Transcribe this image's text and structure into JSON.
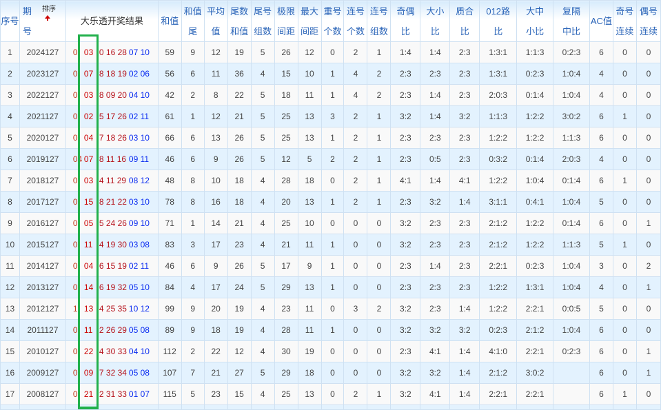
{
  "table": {
    "headers": [
      {
        "lines": [
          "序号"
        ]
      },
      {
        "lines": [
          "期",
          "号"
        ],
        "sort_label": "排序"
      },
      {
        "lines": [
          "大乐透开奖结果"
        ]
      },
      {
        "lines": [
          "和值"
        ]
      },
      {
        "lines": [
          "和值",
          "尾"
        ]
      },
      {
        "lines": [
          "平均",
          "值"
        ]
      },
      {
        "lines": [
          "尾数",
          "和值"
        ]
      },
      {
        "lines": [
          "尾号",
          "组数"
        ]
      },
      {
        "lines": [
          "极限",
          "间距"
        ]
      },
      {
        "lines": [
          "最大",
          "间距"
        ]
      },
      {
        "lines": [
          "重号",
          "个数"
        ]
      },
      {
        "lines": [
          "连号",
          "个数"
        ]
      },
      {
        "lines": [
          "连号",
          "组数"
        ]
      },
      {
        "lines": [
          "奇偶",
          "比"
        ]
      },
      {
        "lines": [
          "大小",
          "比"
        ]
      },
      {
        "lines": [
          "质合",
          "比"
        ]
      },
      {
        "lines": [
          "012路",
          "比"
        ]
      },
      {
        "lines": [
          "大中",
          "小比"
        ]
      },
      {
        "lines": [
          "复隔",
          "中比"
        ]
      },
      {
        "lines": [
          "AC值"
        ]
      },
      {
        "lines": [
          "奇号",
          "连续"
        ]
      },
      {
        "lines": [
          "偶号",
          "连续"
        ]
      }
    ],
    "rows": [
      {
        "no": "1",
        "issue": "2024127",
        "draw": [
          "0",
          "03",
          "0 16 28",
          "07 10"
        ],
        "stats": [
          "59",
          "9",
          "12",
          "19",
          "5",
          "26",
          "12",
          "0",
          "2",
          "1",
          "1:4",
          "1:4",
          "2:3",
          "1:3:1",
          "1:1:3",
          "0:2:3",
          "6",
          "0",
          "0"
        ]
      },
      {
        "no": "2",
        "issue": "2023127",
        "draw": [
          "0",
          "07",
          "8 18 19",
          "02 06"
        ],
        "stats": [
          "56",
          "6",
          "11",
          "36",
          "4",
          "15",
          "10",
          "1",
          "4",
          "2",
          "2:3",
          "2:3",
          "2:3",
          "1:3:1",
          "0:2:3",
          "1:0:4",
          "4",
          "0",
          "0"
        ]
      },
      {
        "no": "3",
        "issue": "2022127",
        "draw": [
          "0",
          "03",
          "8 09 20",
          "04 10"
        ],
        "stats": [
          "42",
          "2",
          "8",
          "22",
          "5",
          "18",
          "11",
          "1",
          "4",
          "2",
          "2:3",
          "1:4",
          "2:3",
          "2:0:3",
          "0:1:4",
          "1:0:4",
          "4",
          "0",
          "0"
        ]
      },
      {
        "no": "4",
        "issue": "2021127",
        "draw": [
          "0",
          "02",
          "5 17 26",
          "02 11"
        ],
        "stats": [
          "61",
          "1",
          "12",
          "21",
          "5",
          "25",
          "13",
          "3",
          "2",
          "1",
          "3:2",
          "1:4",
          "3:2",
          "1:1:3",
          "1:2:2",
          "3:0:2",
          "6",
          "1",
          "0"
        ]
      },
      {
        "no": "5",
        "issue": "2020127",
        "draw": [
          "0",
          "04",
          "7 18 26",
          "03 10"
        ],
        "stats": [
          "66",
          "6",
          "13",
          "26",
          "5",
          "25",
          "13",
          "1",
          "2",
          "1",
          "2:3",
          "2:3",
          "2:3",
          "1:2:2",
          "1:2:2",
          "1:1:3",
          "6",
          "0",
          "0"
        ]
      },
      {
        "no": "6",
        "issue": "2019127",
        "draw": [
          "04",
          "07",
          "8 11 16",
          "09 11"
        ],
        "stats": [
          "46",
          "6",
          "9",
          "26",
          "5",
          "12",
          "5",
          "2",
          "2",
          "1",
          "2:3",
          "0:5",
          "2:3",
          "0:3:2",
          "0:1:4",
          "2:0:3",
          "4",
          "0",
          "0"
        ]
      },
      {
        "no": "7",
        "issue": "2018127",
        "draw": [
          "0",
          "03",
          "4 11 29",
          "08 12"
        ],
        "stats": [
          "48",
          "8",
          "10",
          "18",
          "4",
          "28",
          "18",
          "0",
          "2",
          "1",
          "4:1",
          "1:4",
          "4:1",
          "1:2:2",
          "1:0:4",
          "0:1:4",
          "6",
          "1",
          "0"
        ]
      },
      {
        "no": "8",
        "issue": "2017127",
        "draw": [
          "0",
          "15",
          "8 21 22",
          "03 10"
        ],
        "stats": [
          "78",
          "8",
          "16",
          "18",
          "4",
          "20",
          "13",
          "1",
          "2",
          "1",
          "2:3",
          "3:2",
          "1:4",
          "3:1:1",
          "0:4:1",
          "1:0:4",
          "5",
          "0",
          "0"
        ]
      },
      {
        "no": "9",
        "issue": "2016127",
        "draw": [
          "0",
          "05",
          "5 24 26",
          "09 10"
        ],
        "stats": [
          "71",
          "1",
          "14",
          "21",
          "4",
          "25",
          "10",
          "0",
          "0",
          "0",
          "3:2",
          "2:3",
          "2:3",
          "2:1:2",
          "1:2:2",
          "0:1:4",
          "6",
          "0",
          "1"
        ]
      },
      {
        "no": "10",
        "issue": "2015127",
        "draw": [
          "0",
          "11",
          "4 19 30",
          "03 08"
        ],
        "stats": [
          "83",
          "3",
          "17",
          "23",
          "4",
          "21",
          "11",
          "1",
          "0",
          "0",
          "3:2",
          "2:3",
          "2:3",
          "2:1:2",
          "1:2:2",
          "1:1:3",
          "5",
          "1",
          "0"
        ]
      },
      {
        "no": "11",
        "issue": "2014127",
        "draw": [
          "0",
          "04",
          "6 15 19",
          "02 11"
        ],
        "stats": [
          "46",
          "6",
          "9",
          "26",
          "5",
          "17",
          "9",
          "1",
          "0",
          "0",
          "2:3",
          "1:4",
          "2:3",
          "2:2:1",
          "0:2:3",
          "1:0:4",
          "3",
          "0",
          "2"
        ]
      },
      {
        "no": "12",
        "issue": "2013127",
        "draw": [
          "0",
          "14",
          "6 19 32",
          "05 10"
        ],
        "stats": [
          "84",
          "4",
          "17",
          "24",
          "5",
          "29",
          "13",
          "1",
          "0",
          "0",
          "2:3",
          "2:3",
          "2:3",
          "1:2:2",
          "1:3:1",
          "1:0:4",
          "4",
          "0",
          "1"
        ]
      },
      {
        "no": "13",
        "issue": "2012127",
        "draw": [
          "1",
          "13",
          "4 25 35",
          "10 12"
        ],
        "stats": [
          "99",
          "9",
          "20",
          "19",
          "4",
          "23",
          "11",
          "0",
          "3",
          "2",
          "3:2",
          "2:3",
          "1:4",
          "1:2:2",
          "2:2:1",
          "0:0:5",
          "5",
          "0",
          "0"
        ]
      },
      {
        "no": "14",
        "issue": "2011127",
        "draw": [
          "0",
          "11",
          "2 26 29",
          "05 08"
        ],
        "stats": [
          "89",
          "9",
          "18",
          "19",
          "4",
          "28",
          "11",
          "1",
          "0",
          "0",
          "3:2",
          "3:2",
          "3:2",
          "0:2:3",
          "2:1:2",
          "1:0:4",
          "6",
          "0",
          "0"
        ]
      },
      {
        "no": "15",
        "issue": "2010127",
        "draw": [
          "0",
          "22",
          "4 30 33",
          "04 10"
        ],
        "stats": [
          "112",
          "2",
          "22",
          "12",
          "4",
          "30",
          "19",
          "0",
          "0",
          "0",
          "2:3",
          "4:1",
          "1:4",
          "4:1:0",
          "2:2:1",
          "0:2:3",
          "6",
          "0",
          "1"
        ]
      },
      {
        "no": "16",
        "issue": "2009127",
        "draw": [
          "0",
          "09",
          "7 32 34",
          "05 08"
        ],
        "stats": [
          "107",
          "7",
          "21",
          "27",
          "5",
          "29",
          "18",
          "0",
          "0",
          "0",
          "3:2",
          "3:2",
          "1:4",
          "2:1:2",
          "3:0:2",
          "",
          "6",
          "0",
          "1"
        ]
      },
      {
        "no": "17",
        "issue": "2008127",
        "draw": [
          "0",
          "21",
          "2 31 33",
          "01 07"
        ],
        "stats": [
          "115",
          "5",
          "23",
          "15",
          "4",
          "25",
          "13",
          "0",
          "2",
          "1",
          "3:2",
          "4:1",
          "1:4",
          "2:2:1",
          "2:2:1",
          "",
          "6",
          "1",
          "0"
        ]
      }
    ]
  },
  "colors": {
    "front_number": "#c00000",
    "back_number": "#0a2cf0",
    "highlight_box": "#21b04b",
    "header_text": "#2a64b8"
  }
}
